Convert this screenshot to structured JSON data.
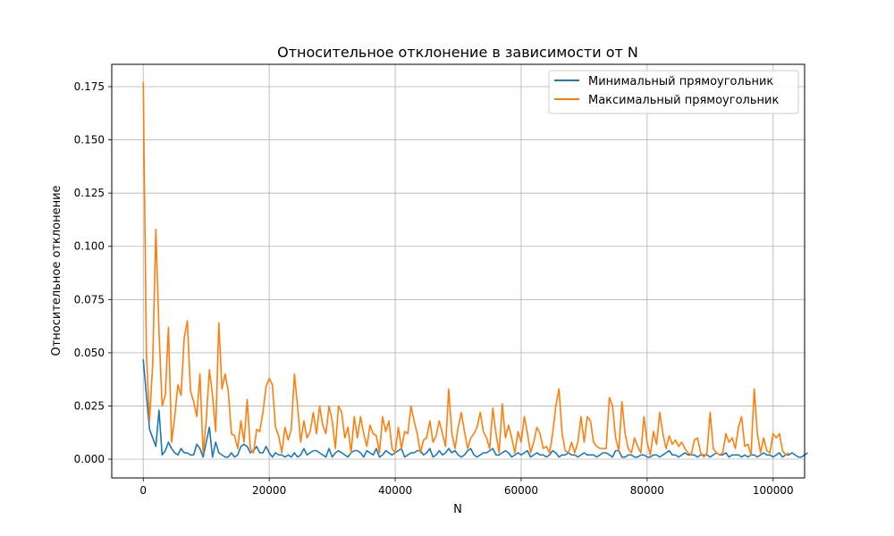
{
  "chart_data": {
    "type": "line",
    "title": "Относительное отклонение в зависимости от N",
    "xlabel": "N",
    "ylabel": "Относительное отклонение",
    "xlim": [
      -5000,
      105000
    ],
    "ylim": [
      -0.0088,
      0.1855
    ],
    "x_ticks": [
      0,
      20000,
      40000,
      60000,
      80000,
      100000
    ],
    "x_tick_labels": [
      "0",
      "20000",
      "40000",
      "60000",
      "80000",
      "100000"
    ],
    "y_ticks": [
      0.0,
      0.025,
      0.05,
      0.075,
      0.1,
      0.125,
      0.15,
      0.175
    ],
    "y_tick_labels": [
      "0.000",
      "0.025",
      "0.050",
      "0.075",
      "0.100",
      "0.125",
      "0.150",
      "0.175"
    ],
    "grid": true,
    "legend_position": "upper right",
    "x_start": 1,
    "x_step": 500,
    "series": [
      {
        "name": "Минимальный прямоугольник",
        "color": "#1f77b4",
        "values": [
          0.047,
          0.03,
          0.014,
          0.01,
          0.006,
          0.023,
          0.002,
          0.004,
          0.008,
          0.005,
          0.003,
          0.002,
          0.005,
          0.003,
          0.003,
          0.002,
          0.002,
          0.007,
          0.005,
          0.001,
          0.008,
          0.015,
          0.001,
          0.008,
          0.003,
          0.002,
          0.001,
          0.001,
          0.003,
          0.001,
          0.002,
          0.006,
          0.007,
          0.006,
          0.003,
          0.004,
          0.006,
          0.003,
          0.003,
          0.006,
          0.003,
          0.001,
          0.003,
          0.002,
          0.002,
          0.001,
          0.002,
          0.001,
          0.003,
          0.001,
          0.002,
          0.005,
          0.002,
          0.003,
          0.004,
          0.004,
          0.003,
          0.002,
          0.001,
          0.005,
          0.001,
          0.003,
          0.004,
          0.003,
          0.002,
          0.001,
          0.003,
          0.004,
          0.004,
          0.003,
          0.001,
          0.004,
          0.003,
          0.002,
          0.005,
          0.001,
          0.002,
          0.004,
          0.003,
          0.002,
          0.003,
          0.004,
          0.005,
          0.001,
          0.002,
          0.003,
          0.003,
          0.004,
          0.004,
          0.002,
          0.003,
          0.005,
          0.001,
          0.002,
          0.004,
          0.002,
          0.003,
          0.005,
          0.003,
          0.004,
          0.002,
          0.001,
          0.002,
          0.004,
          0.005,
          0.002,
          0.001,
          0.002,
          0.003,
          0.003,
          0.004,
          0.005,
          0.002,
          0.002,
          0.003,
          0.004,
          0.003,
          0.001,
          0.002,
          0.003,
          0.002,
          0.003,
          0.004,
          0.001,
          0.002,
          0.003,
          0.002,
          0.002,
          0.001,
          0.002,
          0.004,
          0.003,
          0.001,
          0.002,
          0.002,
          0.003,
          0.002,
          0.002,
          0.001,
          0.002,
          0.003,
          0.002,
          0.002,
          0.002,
          0.001,
          0.002,
          0.003,
          0.003,
          0.002,
          0.001,
          0.004,
          0.004,
          0.001,
          0.001,
          0.002,
          0.002,
          0.001,
          0.001,
          0.002,
          0.002,
          0.001,
          0.001,
          0.002,
          0.002,
          0.001,
          0.002,
          0.003,
          0.004,
          0.002,
          0.002,
          0.001,
          0.002,
          0.003,
          0.002,
          0.002,
          0.002,
          0.001,
          0.002,
          0.002,
          0.002,
          0.001,
          0.002,
          0.003,
          0.002,
          0.002,
          0.003,
          0.001,
          0.002,
          0.002,
          0.002,
          0.001,
          0.002,
          0.001,
          0.002,
          0.002,
          0.001,
          0.002,
          0.003,
          0.002,
          0.002,
          0.001,
          0.002,
          0.003,
          0.001,
          0.002,
          0.002,
          0.003,
          0.002,
          0.001,
          0.001,
          0.002,
          0.003
        ]
      },
      {
        "name": "Максимальный прямоугольник",
        "color": "#ff7f0e",
        "values": [
          0.177,
          0.05,
          0.018,
          0.045,
          0.108,
          0.06,
          0.025,
          0.03,
          0.062,
          0.008,
          0.02,
          0.035,
          0.03,
          0.057,
          0.065,
          0.032,
          0.027,
          0.02,
          0.04,
          0.003,
          0.018,
          0.042,
          0.03,
          0.013,
          0.064,
          0.033,
          0.04,
          0.032,
          0.012,
          0.011,
          0.005,
          0.018,
          0.008,
          0.028,
          0.005,
          0.003,
          0.014,
          0.013,
          0.022,
          0.034,
          0.038,
          0.035,
          0.015,
          0.011,
          0.003,
          0.015,
          0.009,
          0.014,
          0.04,
          0.025,
          0.008,
          0.018,
          0.01,
          0.013,
          0.022,
          0.012,
          0.025,
          0.016,
          0.012,
          0.025,
          0.018,
          0.005,
          0.025,
          0.022,
          0.01,
          0.015,
          0.003,
          0.02,
          0.01,
          0.02,
          0.012,
          0.006,
          0.016,
          0.012,
          0.011,
          0.003,
          0.02,
          0.013,
          0.018,
          0.005,
          0.003,
          0.015,
          0.005,
          0.013,
          0.012,
          0.025,
          0.018,
          0.012,
          0.003,
          0.009,
          0.01,
          0.018,
          0.008,
          0.011,
          0.018,
          0.012,
          0.006,
          0.033,
          0.012,
          0.005,
          0.015,
          0.022,
          0.013,
          0.005,
          0.01,
          0.012,
          0.015,
          0.022,
          0.013,
          0.01,
          0.005,
          0.024,
          0.012,
          0.003,
          0.026,
          0.01,
          0.016,
          0.01,
          0.003,
          0.013,
          0.008,
          0.02,
          0.012,
          0.003,
          0.008,
          0.015,
          0.012,
          0.005,
          0.006,
          0.003,
          0.012,
          0.025,
          0.033,
          0.012,
          0.004,
          0.003,
          0.008,
          0.003,
          0.008,
          0.02,
          0.008,
          0.02,
          0.018,
          0.008,
          0.006,
          0.005,
          0.005,
          0.005,
          0.029,
          0.025,
          0.01,
          0.004,
          0.027,
          0.012,
          0.005,
          0.003,
          0.01,
          0.006,
          0.003,
          0.02,
          0.008,
          0.002,
          0.013,
          0.007,
          0.022,
          0.012,
          0.005,
          0.011,
          0.007,
          0.009,
          0.006,
          0.008,
          0.005,
          0.003,
          0.002,
          0.009,
          0.01,
          0.003,
          0.001,
          0.003,
          0.022,
          0.005,
          0.003,
          0.002,
          0.003,
          0.012,
          0.008,
          0.01,
          0.005,
          0.015,
          0.02,
          0.006,
          0.007,
          0.002,
          0.033,
          0.012,
          0.003,
          0.01,
          0.004,
          0.003,
          0.012,
          0.01,
          0.012,
          0.004,
          0.002,
          0.003
        ],
        "_note": ""
      }
    ]
  }
}
